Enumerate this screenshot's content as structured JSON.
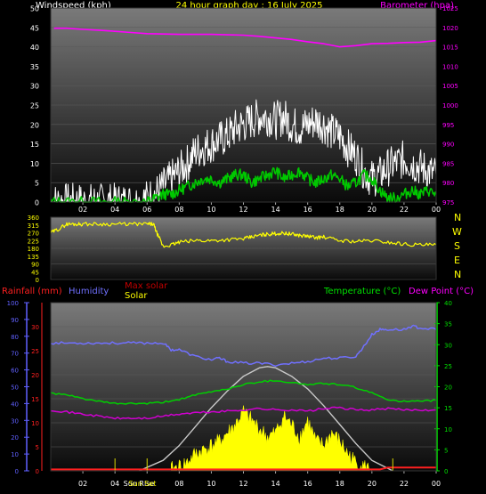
{
  "header": {
    "left_title": "Windspeed (kph)",
    "center_title": "24 hour graph day : 16 July 2025",
    "right_title": "Barometer (hpa)"
  },
  "colors": {
    "background": "#000000",
    "windspeed": "#ffffff",
    "wind_average": "#00c800",
    "barometer": "#ff00ff",
    "wind_direction": "#ffff00",
    "temperature": "#00d000",
    "dew_point": "#d000d0",
    "humidity": "#7070ff",
    "rainfall": "#ff2020",
    "solar": "#ffff00",
    "max_solar": "#c8c8c8",
    "left_axis_text": "#ffffff",
    "barometer_axis": "#ff00ff",
    "direction_axis": "#ffff00",
    "humidity_axis": "#6060ff",
    "rain_axis": "#ff2020",
    "temperature_axis": "#00e000"
  },
  "compass": [
    "N",
    "W",
    "S",
    "E",
    "N"
  ],
  "chart_data": [
    {
      "type": "line",
      "name": "wind_barometer",
      "x_ticks": [
        "02",
        "04",
        "06",
        "08",
        "10",
        "12",
        "14",
        "16",
        "18",
        "20",
        "22",
        "00"
      ],
      "xlim": [
        0,
        24
      ],
      "y_left": {
        "label": "Windspeed (kph)",
        "ticks": [
          0,
          5,
          10,
          15,
          20,
          25,
          30,
          35,
          40,
          45,
          50
        ],
        "ylim": [
          0,
          50
        ]
      },
      "y_right": {
        "label": "Barometer (hpa)",
        "ticks": [
          975,
          980,
          985,
          990,
          995,
          1000,
          1005,
          1010,
          1015,
          1020,
          1025
        ],
        "ylim": [
          975,
          1025
        ]
      },
      "series": [
        {
          "axis": "right",
          "x": [
            0.2,
            1,
            2,
            3,
            4,
            5,
            6,
            7,
            8,
            9,
            10,
            11,
            12,
            13,
            14,
            15,
            16,
            17,
            18,
            19,
            20,
            21,
            22,
            23,
            24
          ],
          "values": [
            1019.8,
            1019.8,
            1019.5,
            1019.3,
            1019.0,
            1018.7,
            1018.4,
            1018.3,
            1018.2,
            1018.2,
            1018.2,
            1018.1,
            1018.0,
            1017.7,
            1017.3,
            1016.9,
            1016.3,
            1015.8,
            1015.0,
            1015.3,
            1015.8,
            1015.9,
            1016.1,
            1016.2,
            1016.6
          ]
        },
        {
          "axis": "left",
          "x": [
            0,
            0.5,
            1,
            1.5,
            2,
            2.5,
            3,
            3.5,
            4,
            4.5,
            5,
            5.5,
            6,
            6.5,
            7,
            7.5,
            8,
            8.5,
            9,
            9.5,
            10,
            10.5,
            11,
            11.5,
            12,
            12.5,
            13,
            13.5,
            14,
            14.5,
            15,
            15.5,
            16,
            16.5,
            17,
            17.5,
            18,
            18.5,
            19,
            19.5,
            20,
            20.5,
            21,
            21.5,
            22,
            22.5,
            23,
            23.5,
            24
          ],
          "values": [
            0,
            0,
            0,
            0,
            0,
            0,
            0,
            0,
            0,
            0,
            0,
            0,
            1,
            2,
            4,
            6,
            8,
            10,
            13,
            14,
            15,
            16,
            17,
            19,
            20,
            21,
            22,
            22,
            21,
            22,
            20,
            19,
            20,
            21,
            20,
            18,
            17,
            14,
            12,
            8,
            6,
            7,
            9,
            10,
            11,
            10,
            9,
            8,
            7
          ]
        },
        {
          "axis": "left",
          "x": [
            0,
            1,
            2,
            3,
            4,
            5,
            6,
            6.5,
            7,
            7.5,
            8,
            8.5,
            9,
            9.5,
            10,
            10.5,
            11,
            11.5,
            12,
            12.5,
            13,
            13.5,
            14,
            14.5,
            15,
            15.5,
            16,
            16.5,
            17,
            17.5,
            18,
            18.5,
            19,
            19.5,
            20,
            20.5,
            21,
            21.5,
            22,
            22.5,
            23,
            23.5,
            24
          ],
          "values": [
            0,
            0,
            0,
            0,
            0,
            0,
            0,
            1,
            2,
            2,
            3,
            4,
            5,
            6,
            6,
            5,
            6,
            7,
            7,
            5,
            6,
            7,
            8,
            6,
            7,
            8,
            6,
            5,
            6,
            7,
            6,
            4,
            5,
            7,
            6,
            3,
            1,
            1,
            2,
            3,
            2,
            3,
            2
          ]
        }
      ]
    },
    {
      "type": "line",
      "name": "wind_direction",
      "x_ticks": [
        "02",
        "04",
        "06",
        "08",
        "10",
        "12",
        "14",
        "16",
        "18",
        "20",
        "22",
        "00"
      ],
      "xlim": [
        0,
        24
      ],
      "y_left": {
        "ticks": [
          0,
          90,
          180,
          270,
          360
        ],
        "minor_ticks": [
          45,
          135,
          225,
          315
        ],
        "ylim": [
          0,
          360
        ]
      },
      "series": [
        {
          "axis": "left",
          "x": [
            0,
            0.5,
            1,
            1.5,
            2,
            3,
            4,
            5,
            6,
            6.4,
            6.6,
            7,
            7.5,
            8,
            9,
            10,
            11,
            12,
            12.5,
            13,
            13.5,
            14,
            14.5,
            15,
            15.5,
            16,
            16.5,
            17,
            18,
            19,
            20,
            21,
            22,
            23,
            24
          ],
          "values": [
            270,
            292,
            320,
            320,
            320,
            320,
            320,
            320,
            320,
            320,
            270,
            190,
            200,
            215,
            225,
            225,
            230,
            235,
            245,
            255,
            262,
            265,
            268,
            262,
            255,
            250,
            242,
            245,
            225,
            220,
            225,
            215,
            205,
            200,
            200
          ]
        }
      ]
    },
    {
      "type": "line",
      "name": "temperature_humidity_rain_solar",
      "x_ticks": [
        "02",
        "04",
        "06",
        "08",
        "10",
        "12",
        "14",
        "16",
        "18",
        "20",
        "22",
        "00"
      ],
      "x_annotations": [
        "Sun Rise",
        "Sun Set"
      ],
      "xlim": [
        0,
        24
      ],
      "legend": [
        "Rainfall (mm)",
        "Humidity",
        "Max solar",
        "Solar",
        "Temperature (°C)",
        "Dew Point (°C)"
      ],
      "y_humidity": {
        "ticks": [
          0,
          10,
          20,
          30,
          40,
          50,
          60,
          70,
          80,
          90,
          100
        ],
        "ylim": [
          0,
          100
        ]
      },
      "y_rain": {
        "ticks": [
          0,
          5,
          10,
          15,
          20,
          25,
          30
        ],
        "ylim": [
          0,
          35
        ]
      },
      "y_temperature": {
        "ticks": [
          0,
          5,
          10,
          15,
          20,
          25,
          30,
          35,
          40
        ],
        "ylim": [
          0,
          40
        ]
      },
      "series": [
        {
          "name": "Humidity",
          "axis": "humidity",
          "x": [
            0,
            1,
            2,
            3,
            4,
            5,
            6,
            7,
            7.5,
            8,
            9,
            10,
            10.5,
            11,
            12,
            13,
            14,
            15,
            16,
            17,
            18,
            19,
            19.5,
            20,
            20.5,
            21,
            22,
            22.5,
            23,
            24
          ],
          "values": [
            76,
            76,
            76,
            76,
            76,
            76,
            76,
            76,
            72,
            72,
            68,
            66,
            67,
            65,
            64,
            64,
            63,
            64,
            65,
            67,
            67,
            68,
            74,
            81,
            84,
            84,
            84,
            86,
            85,
            84
          ]
        },
        {
          "name": "Temperature (°C)",
          "axis": "temperature",
          "x": [
            0,
            1,
            2,
            3,
            4,
            5,
            6,
            7,
            8,
            9,
            10,
            11,
            12,
            13,
            14,
            15,
            16,
            17,
            18,
            19,
            20,
            21,
            22,
            23,
            24
          ],
          "values": [
            18.5,
            18.0,
            17.2,
            16.5,
            16.0,
            16.0,
            16.0,
            16.3,
            17.0,
            18.0,
            18.8,
            19.5,
            20.5,
            21.2,
            21.5,
            21.0,
            20.5,
            20.8,
            20.5,
            19.8,
            18.5,
            17.0,
            16.5,
            16.5,
            16.8
          ]
        },
        {
          "name": "Dew Point (°C)",
          "axis": "temperature",
          "x": [
            0,
            1,
            2,
            3,
            4,
            5,
            6,
            7,
            8,
            9,
            10,
            11,
            12,
            13,
            14,
            15,
            16,
            17,
            18,
            19,
            20,
            21,
            22,
            23,
            24
          ],
          "values": [
            14.5,
            14.0,
            13.5,
            13.0,
            12.5,
            12.5,
            12.5,
            13.0,
            13.5,
            13.8,
            14.0,
            14.2,
            14.5,
            14.8,
            14.5,
            14.5,
            14.2,
            14.8,
            15.0,
            14.5,
            14.5,
            14.8,
            14.5,
            14.5,
            14.5
          ]
        },
        {
          "name": "Rainfall (mm)",
          "axis": "rain",
          "x": [
            0,
            20.5,
            21,
            24
          ],
          "values": [
            0.3,
            0.3,
            0.7,
            0.7
          ]
        },
        {
          "name": "Max solar",
          "axis": "temperature",
          "x": [
            5.5,
            7,
            8,
            9,
            10,
            11,
            12,
            13,
            13.5,
            14,
            15,
            16,
            17,
            18,
            19,
            20,
            21.3
          ],
          "values": [
            0,
            2.5,
            6,
            10.5,
            15,
            19,
            22.5,
            24.5,
            24.8,
            24.5,
            22.5,
            19.5,
            15.5,
            11,
            6.5,
            2.5,
            0
          ]
        },
        {
          "name": "Solar",
          "axis": "temperature",
          "x": [
            7.5,
            8,
            8.5,
            9,
            9.5,
            10,
            10.5,
            11,
            11.5,
            12,
            12.5,
            13,
            13.5,
            14,
            14.5,
            15,
            15.5,
            16,
            16.5,
            17,
            17.5,
            18,
            18.5,
            19,
            19.5,
            20
          ],
          "values": [
            0.3,
            1,
            2,
            4,
            5,
            6,
            7,
            9,
            11,
            14,
            12,
            10,
            8,
            9,
            13,
            11,
            8,
            12,
            7,
            6,
            9,
            7,
            4,
            2,
            1,
            0.3
          ]
        }
      ]
    }
  ]
}
